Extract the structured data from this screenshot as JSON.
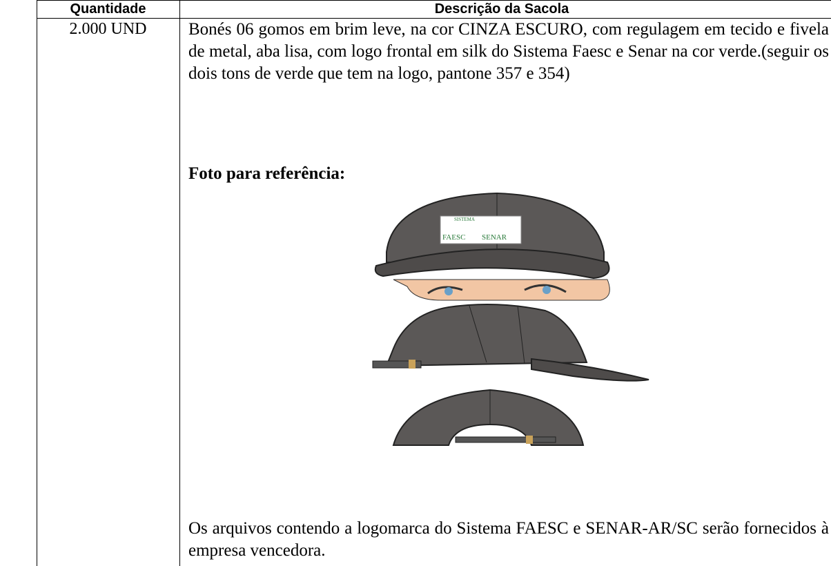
{
  "table": {
    "headers": [
      "Quantidade",
      "Descrição da Sacola"
    ],
    "rows": [
      {
        "quantity": "2.000 UND",
        "description": "Bonés 06 gomos em brim leve, na cor CINZA ESCURO, com regulagem em tecido e fivela de metal, aba lisa, com logo frontal em silk do Sistema Faesc e Senar na cor verde.(seguir os dois tons de verde que tem na logo, pantone 357 e 354)",
        "photo_label": "Foto para referência:",
        "logo": {
          "top": "SISTEMA",
          "left": "FAESC",
          "right": "SENAR"
        },
        "note": "Os arquivos contendo a logomarca do Sistema FAESC e SENAR-AR/SC serão fornecidos à empresa vencedora."
      }
    ]
  }
}
